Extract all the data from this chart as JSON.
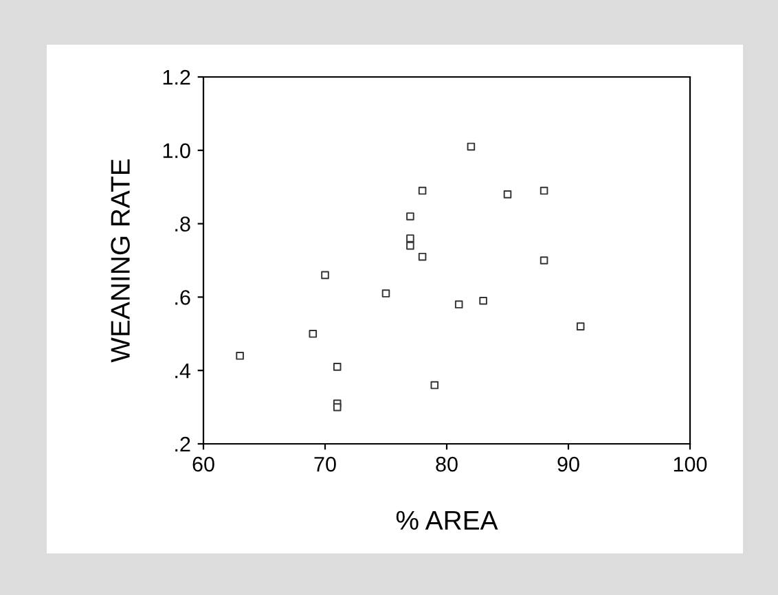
{
  "chart_data": {
    "type": "scatter",
    "xlabel": "% AREA",
    "ylabel": "WEANING RATE",
    "x": [
      63,
      69,
      70,
      71,
      71,
      71,
      75,
      77,
      77,
      77,
      78,
      78,
      79,
      81,
      82,
      83,
      85,
      88,
      88,
      91
    ],
    "values": [
      0.44,
      0.5,
      0.66,
      0.41,
      0.31,
      0.3,
      0.61,
      0.82,
      0.76,
      0.74,
      0.89,
      0.71,
      0.36,
      0.58,
      1.01,
      0.59,
      0.88,
      0.89,
      0.7,
      0.52
    ],
    "color": "#333333",
    "marker": "square",
    "grid": false,
    "legend": false,
    "xlim": [
      60,
      100
    ],
    "xticks": [
      60,
      70,
      80,
      90,
      100
    ],
    "ylim": [
      0.2,
      1.2
    ],
    "yticks": [
      {
        "value": 0.2,
        "label": ".2"
      },
      {
        "value": 0.4,
        "label": ".4"
      },
      {
        "value": 0.6,
        "label": ".6"
      },
      {
        "value": 0.8,
        "label": ".8"
      },
      {
        "value": 1.0,
        "label": "1.0"
      },
      {
        "value": 1.2,
        "label": "1.2"
      }
    ]
  }
}
